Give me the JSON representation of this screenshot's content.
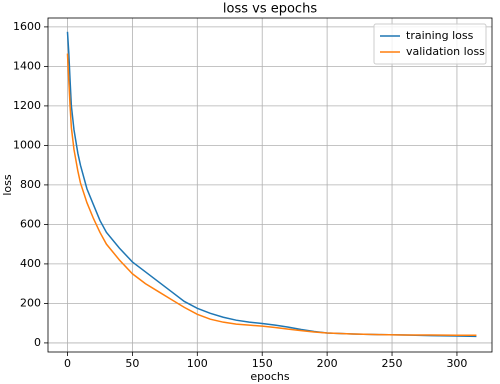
{
  "chart_data": {
    "type": "line",
    "title": "loss vs epochs",
    "x_label": "epochs",
    "y_label": "loss",
    "x": [
      0,
      1,
      2,
      3,
      5,
      8,
      10,
      15,
      20,
      25,
      30,
      40,
      50,
      60,
      70,
      80,
      90,
      100,
      110,
      120,
      130,
      140,
      150,
      160,
      170,
      180,
      190,
      200,
      220,
      240,
      260,
      280,
      300,
      315
    ],
    "series": [
      {
        "name": "training loss",
        "color": "#1f77b4",
        "values": [
          1575,
          1470,
          1330,
          1200,
          1080,
          960,
          900,
          780,
          700,
          620,
          560,
          480,
          410,
          360,
          310,
          260,
          210,
          175,
          150,
          130,
          115,
          105,
          98,
          90,
          80,
          68,
          58,
          50,
          45,
          42,
          40,
          37,
          35,
          33
        ]
      },
      {
        "name": "validation loss",
        "color": "#ff7f0e",
        "values": [
          1465,
          1330,
          1200,
          1090,
          980,
          870,
          810,
          710,
          630,
          560,
          500,
          420,
          350,
          300,
          260,
          220,
          180,
          145,
          120,
          105,
          95,
          90,
          85,
          78,
          70,
          62,
          55,
          50,
          45,
          42,
          40,
          40,
          39,
          39
        ]
      }
    ],
    "xlim": [
      -15,
      327
    ],
    "ylim": [
      -46,
      1645
    ],
    "xticks": [
      0,
      50,
      100,
      150,
      200,
      250,
      300
    ],
    "yticks": [
      0,
      200,
      400,
      600,
      800,
      1000,
      1200,
      1400,
      1600
    ],
    "grid": true,
    "legend": "upper-right"
  }
}
